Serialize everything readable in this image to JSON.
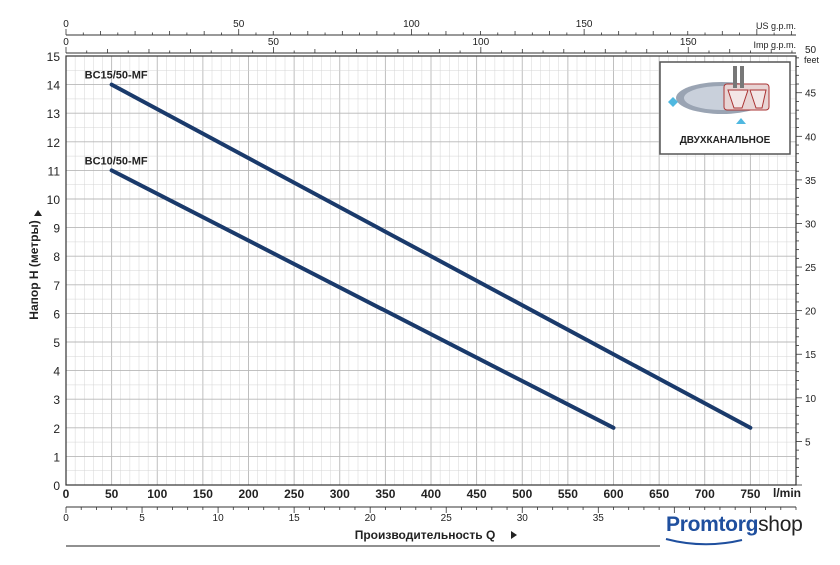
{
  "chart_data": {
    "type": "line",
    "ylabel": "Напор H (метры)",
    "xlabel": "Производительность Q",
    "x_unit_label": "l/min",
    "xlim": [
      0,
      800
    ],
    "ylim": [
      0,
      15
    ],
    "x_ticks": [
      "0",
      "50",
      "100",
      "150",
      "200",
      "250",
      "300",
      "350",
      "400",
      "450",
      "500",
      "550",
      "600",
      "650",
      "700",
      "750"
    ],
    "y_ticks": [
      "0",
      "1",
      "2",
      "3",
      "4",
      "5",
      "6",
      "7",
      "8",
      "9",
      "10",
      "11",
      "12",
      "13",
      "14",
      "15"
    ],
    "grid": true,
    "series": [
      {
        "name": "BC15/50-MF",
        "x": [
          50,
          750
        ],
        "y": [
          14,
          2
        ]
      },
      {
        "name": "BC10/50-MF",
        "x": [
          50,
          600
        ],
        "y": [
          11,
          2
        ]
      }
    ],
    "top_axis_us": {
      "label": "US g.p.m.",
      "ticks": [
        "0",
        "50",
        "100",
        "150"
      ]
    },
    "top_axis_imp": {
      "label": "Imp g.p.m.",
      "ticks": [
        "0",
        "50",
        "100",
        "150"
      ]
    },
    "right_axis_feet": {
      "label": "feet",
      "ticks": [
        "5",
        "10",
        "15",
        "20",
        "25",
        "30",
        "35",
        "40",
        "45",
        "50"
      ]
    },
    "bottom_axis_m3h": {
      "ticks": [
        "0",
        "5",
        "10",
        "15",
        "20",
        "25",
        "30",
        "35"
      ]
    }
  },
  "impeller_badge": {
    "label": "ДВУХКАНАЛЬНОЕ"
  },
  "brand": {
    "part1": "Promtorg",
    "part2": "shop"
  },
  "colors": {
    "curve": "#1a3a6b",
    "grid_minor": "#d4d4d4",
    "grid_major": "#b8b8b8",
    "brand": "#1f4f9e"
  }
}
